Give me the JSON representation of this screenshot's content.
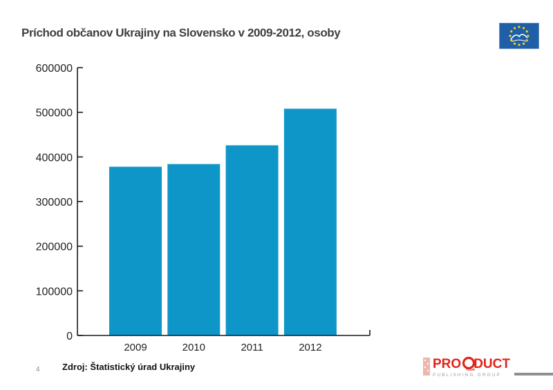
{
  "title": "Príchod  občanov Ukrajiny na Slovensko v 2009-2012, osoby",
  "source": "Zdroj: Štatistický úrad Ukrajiny",
  "page_number": "4",
  "logo": {
    "icon": "eu-stars-emblem-icon",
    "bg": "#1f5fa8",
    "star_color": "#f2d21b"
  },
  "brand": {
    "icon": "product-publishing-logo-icon",
    "name": "PRODUCT",
    "pro": "PRO",
    "duct": "DUCT",
    "your": "YOUR",
    "sub": "PUBLISHING GROUP",
    "color": "#e2231a",
    "sub_color": "#9a9a9a"
  },
  "chart_data": {
    "type": "bar",
    "categories": [
      "2009",
      "2010",
      "2011",
      "2012"
    ],
    "values": [
      378000,
      384000,
      426000,
      508000
    ],
    "yticks": [
      "0",
      "100000",
      "200000",
      "300000",
      "400000",
      "500000",
      "600000"
    ],
    "ylim": [
      0,
      600000
    ],
    "title": "",
    "xlabel": "",
    "ylabel": "",
    "bar_color": "#0f96c8",
    "grid": false,
    "legend": "none"
  }
}
